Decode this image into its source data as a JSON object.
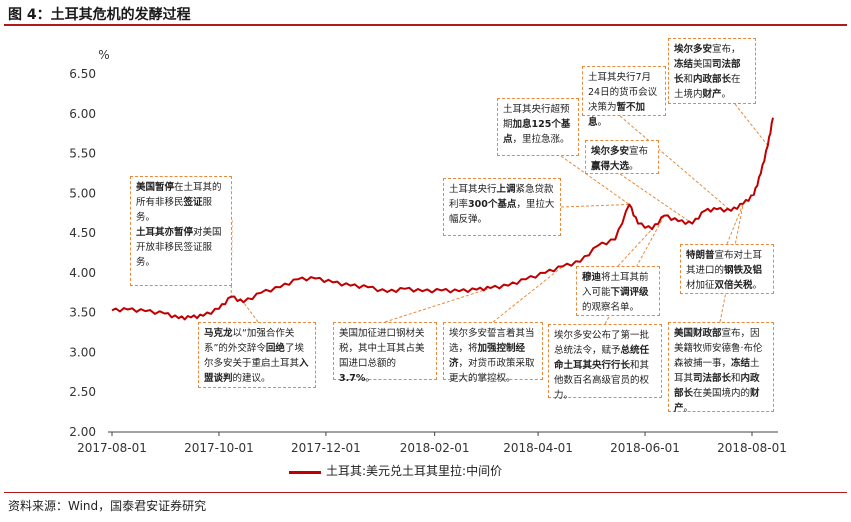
{
  "figure": {
    "title": "图 4：土耳其危机的发酵过程",
    "source": "资料来源：Wind，国泰君安证券研究"
  },
  "chart_data": {
    "type": "line",
    "title": "",
    "ylabel": "%",
    "xlabel": "",
    "ylim": [
      2.0,
      6.5
    ],
    "yticks": [
      "2.00",
      "2.50",
      "3.00",
      "3.50",
      "4.00",
      "4.50",
      "5.00",
      "5.50",
      "6.00",
      "6.50"
    ],
    "xticks": [
      "2017-08-01",
      "2017-10-01",
      "2017-12-01",
      "2018-02-01",
      "2018-04-01",
      "2018-06-01",
      "2018-08-01"
    ],
    "grid": false,
    "legend_position": "bottom",
    "series": [
      {
        "name": "土耳其:美元兑土耳其里拉:中间价",
        "color": "#c00000",
        "points": [
          [
            "2017-08-01",
            3.53
          ],
          [
            "2017-08-10",
            3.54
          ],
          [
            "2017-08-20",
            3.52
          ],
          [
            "2017-08-31",
            3.49
          ],
          [
            "2017-09-08",
            3.43
          ],
          [
            "2017-09-15",
            3.44
          ],
          [
            "2017-09-22",
            3.46
          ],
          [
            "2017-10-01",
            3.55
          ],
          [
            "2017-10-08",
            3.7
          ],
          [
            "2017-10-15",
            3.63
          ],
          [
            "2017-10-25",
            3.75
          ],
          [
            "2017-11-05",
            3.82
          ],
          [
            "2017-11-15",
            3.92
          ],
          [
            "2017-11-25",
            3.93
          ],
          [
            "2017-12-05",
            3.88
          ],
          [
            "2017-12-15",
            3.84
          ],
          [
            "2017-12-25",
            3.82
          ],
          [
            "2018-01-05",
            3.76
          ],
          [
            "2018-01-15",
            3.8
          ],
          [
            "2018-01-25",
            3.77
          ],
          [
            "2018-02-05",
            3.78
          ],
          [
            "2018-02-15",
            3.77
          ],
          [
            "2018-02-25",
            3.79
          ],
          [
            "2018-03-05",
            3.81
          ],
          [
            "2018-03-15",
            3.84
          ],
          [
            "2018-03-25",
            3.92
          ],
          [
            "2018-04-05",
            4.0
          ],
          [
            "2018-04-15",
            4.08
          ],
          [
            "2018-04-25",
            4.14
          ],
          [
            "2018-05-05",
            4.34
          ],
          [
            "2018-05-15",
            4.42
          ],
          [
            "2018-05-23",
            4.86
          ],
          [
            "2018-05-28",
            4.62
          ],
          [
            "2018-06-05",
            4.55
          ],
          [
            "2018-06-12",
            4.72
          ],
          [
            "2018-06-20",
            4.65
          ],
          [
            "2018-06-28",
            4.62
          ],
          [
            "2018-07-05",
            4.78
          ],
          [
            "2018-07-12",
            4.8
          ],
          [
            "2018-07-20",
            4.78
          ],
          [
            "2018-07-27",
            4.87
          ],
          [
            "2018-08-02",
            4.98
          ],
          [
            "2018-08-06",
            5.25
          ],
          [
            "2018-08-10",
            5.6
          ],
          [
            "2018-08-13",
            5.95
          ]
        ]
      }
    ],
    "legend": "土耳其:美元兑土耳其里拉:中间价"
  },
  "annotations": {
    "a1": {
      "b1": "美国暂停",
      "t1": "在土耳其的所有非移民",
      "b2": "签证",
      "t2": "服务。",
      "b3": "土耳其亦暂停",
      "t3": "对美国开放非移民签证服务。"
    },
    "a2": {
      "b1": "马克龙",
      "t1": "以“加强合作关系”的外交辞令",
      "b2": "回绝",
      "t2": "了埃尔多安关于重启土耳其",
      "b3": "入盟谈判",
      "t3": "的建议。"
    },
    "a3": {
      "t1": "美国加征进口钢材关税，其中土耳其占美国进口总额的",
      "b1": "3.7%",
      "t2": "。"
    },
    "a4": {
      "t1": "埃尔多安誓言着其当选，将",
      "b1": "加强控制经济",
      "t2": "，对货币政策采取更大的掌控权。"
    },
    "a5": {
      "t1": "土耳其央行",
      "b1": "上调",
      "t2": "紧急贷款利率",
      "b2": "300个基点",
      "t3": "，里拉大幅反弹。"
    },
    "a6": {
      "t1": "土耳其央行超预期",
      "b1": "加息125个基点",
      "t2": "，里拉急涨。"
    },
    "a7": {
      "t1": "土耳其央行7月24日的货币会议决策为",
      "b1": "暂不加息",
      "t2": "。"
    },
    "a8": {
      "b1": "埃尔多安",
      "t1": "宣布",
      "b2": "赢得大选",
      "t2": "。"
    },
    "a9": {
      "b1": "穆迪",
      "t1": "将土耳其前入可能",
      "b2": "下调评级",
      "t2": "的观察名单。"
    },
    "a10": {
      "t1": "埃尔多安公布了第一批总统法令，赋予",
      "b1": "总统任命土耳其央行行长",
      "t2": "和其他数百名高级官员的权力。"
    },
    "a11": {
      "b1": "埃尔多安",
      "t1": "宣布，",
      "b2": "冻结",
      "t2": "美国",
      "b3": "司法部长",
      "t3": "和",
      "b4": "内政部长",
      "t4": "在土境内",
      "b5": "财产",
      "t5": "。"
    },
    "a12": {
      "b1": "特朗普",
      "t1": "宣布对土耳其进口的",
      "b2": "钢铁及铝",
      "t2": "材加征",
      "b3": "双倍关税",
      "t3": "。"
    },
    "a13": {
      "b1": "美国财政部",
      "t1": "宣布，因美籍牧师安德鲁·布伦森被捕一事，",
      "b2": "冻结",
      "t2": "土耳其",
      "b3": "司法部长",
      "t3": "和",
      "b4": "内政部长",
      "t4": "在美国境内的",
      "b5": "财产",
      "t5": "。"
    }
  }
}
